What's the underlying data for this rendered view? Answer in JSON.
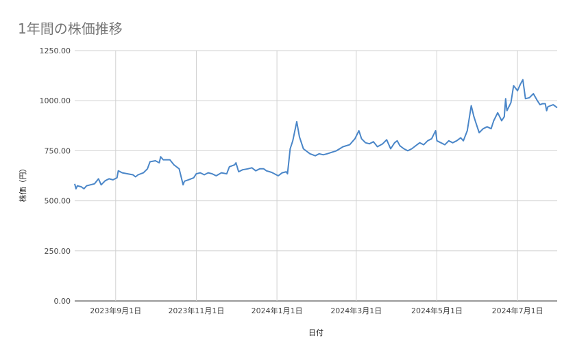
{
  "chart_data": {
    "type": "line",
    "title": "1年間の株価推移",
    "xlabel": "日付",
    "ylabel": "株価（円）",
    "ylim": [
      0,
      1250
    ],
    "xlim": [
      "2023-08-01",
      "2024-07-31"
    ],
    "grid": true,
    "legend": "none",
    "color": "#4a86c8",
    "y_ticks": [
      {
        "value": 0,
        "label": "0.00"
      },
      {
        "value": 250,
        "label": "250.00"
      },
      {
        "value": 500,
        "label": "500.00"
      },
      {
        "value": 750,
        "label": "750.00"
      },
      {
        "value": 1000,
        "label": "1000.00"
      },
      {
        "value": 1250,
        "label": "1250.00"
      }
    ],
    "x_ticks": [
      {
        "date": "2023-09-01",
        "label": "2023年9月1日"
      },
      {
        "date": "2023-11-01",
        "label": "2023年11月1日"
      },
      {
        "date": "2024-01-01",
        "label": "2024年1月1日"
      },
      {
        "date": "2024-03-01",
        "label": "2024年3月1日"
      },
      {
        "date": "2024-05-01",
        "label": "2024年5月1日"
      },
      {
        "date": "2024-07-01",
        "label": "2024年7月1日"
      }
    ],
    "series": [
      {
        "points": [
          [
            "2023-08-01",
            585
          ],
          [
            "2023-08-02",
            560
          ],
          [
            "2023-08-03",
            575
          ],
          [
            "2023-08-06",
            570
          ],
          [
            "2023-08-08",
            560
          ],
          [
            "2023-08-10",
            575
          ],
          [
            "2023-08-13",
            580
          ],
          [
            "2023-08-16",
            585
          ],
          [
            "2023-08-19",
            610
          ],
          [
            "2023-08-21",
            580
          ],
          [
            "2023-08-24",
            600
          ],
          [
            "2023-08-27",
            610
          ],
          [
            "2023-08-30",
            605
          ],
          [
            "2023-09-02",
            615
          ],
          [
            "2023-09-03",
            650
          ],
          [
            "2023-09-06",
            640
          ],
          [
            "2023-09-10",
            635
          ],
          [
            "2023-09-14",
            630
          ],
          [
            "2023-09-16",
            620
          ],
          [
            "2023-09-18",
            630
          ],
          [
            "2023-09-22",
            640
          ],
          [
            "2023-09-25",
            660
          ],
          [
            "2023-09-27",
            695
          ],
          [
            "2023-10-01",
            700
          ],
          [
            "2023-10-04",
            690
          ],
          [
            "2023-10-05",
            720
          ],
          [
            "2023-10-07",
            705
          ],
          [
            "2023-10-12",
            705
          ],
          [
            "2023-10-15",
            680
          ],
          [
            "2023-10-19",
            660
          ],
          [
            "2023-10-22",
            580
          ],
          [
            "2023-10-23",
            598
          ],
          [
            "2023-10-26",
            605
          ],
          [
            "2023-10-30",
            615
          ],
          [
            "2023-11-01",
            635
          ],
          [
            "2023-11-04",
            640
          ],
          [
            "2023-11-07",
            630
          ],
          [
            "2023-11-10",
            640
          ],
          [
            "2023-11-13",
            635
          ],
          [
            "2023-11-16",
            625
          ],
          [
            "2023-11-20",
            640
          ],
          [
            "2023-11-24",
            635
          ],
          [
            "2023-11-26",
            670
          ],
          [
            "2023-11-30",
            680
          ],
          [
            "2023-12-01",
            690
          ],
          [
            "2023-12-03",
            645
          ],
          [
            "2023-12-06",
            655
          ],
          [
            "2023-12-10",
            660
          ],
          [
            "2023-12-13",
            665
          ],
          [
            "2023-12-16",
            650
          ],
          [
            "2023-12-19",
            660
          ],
          [
            "2023-12-22",
            660
          ],
          [
            "2023-12-24",
            650
          ],
          [
            "2023-12-28",
            642
          ],
          [
            "2024-01-02",
            625
          ],
          [
            "2024-01-05",
            640
          ],
          [
            "2024-01-08",
            645
          ],
          [
            "2024-01-09",
            635
          ],
          [
            "2024-01-11",
            760
          ],
          [
            "2024-01-13",
            800
          ],
          [
            "2024-01-16",
            895
          ],
          [
            "2024-01-18",
            820
          ],
          [
            "2024-01-21",
            760
          ],
          [
            "2024-01-26",
            735
          ],
          [
            "2024-01-30",
            725
          ],
          [
            "2024-02-02",
            735
          ],
          [
            "2024-02-05",
            730
          ],
          [
            "2024-02-08",
            735
          ],
          [
            "2024-02-15",
            750
          ],
          [
            "2024-02-20",
            770
          ],
          [
            "2024-02-25",
            780
          ],
          [
            "2024-02-29",
            810
          ],
          [
            "2024-03-03",
            850
          ],
          [
            "2024-03-05",
            810
          ],
          [
            "2024-03-08",
            790
          ],
          [
            "2024-03-11",
            785
          ],
          [
            "2024-03-14",
            795
          ],
          [
            "2024-03-17",
            770
          ],
          [
            "2024-03-21",
            785
          ],
          [
            "2024-03-24",
            805
          ],
          [
            "2024-03-27",
            760
          ],
          [
            "2024-03-30",
            790
          ],
          [
            "2024-04-01",
            800
          ],
          [
            "2024-04-03",
            775
          ],
          [
            "2024-04-06",
            760
          ],
          [
            "2024-04-09",
            750
          ],
          [
            "2024-04-12",
            760
          ],
          [
            "2024-04-15",
            775
          ],
          [
            "2024-04-18",
            790
          ],
          [
            "2024-04-21",
            780
          ],
          [
            "2024-04-24",
            800
          ],
          [
            "2024-04-27",
            810
          ],
          [
            "2024-04-30",
            850
          ],
          [
            "2024-05-01",
            800
          ],
          [
            "2024-05-04",
            790
          ],
          [
            "2024-05-07",
            780
          ],
          [
            "2024-05-10",
            800
          ],
          [
            "2024-05-13",
            790
          ],
          [
            "2024-05-16",
            800
          ],
          [
            "2024-05-19",
            815
          ],
          [
            "2024-05-21",
            800
          ],
          [
            "2024-05-24",
            850
          ],
          [
            "2024-05-27",
            975
          ],
          [
            "2024-05-29",
            920
          ],
          [
            "2024-05-31",
            880
          ],
          [
            "2024-06-02",
            840
          ],
          [
            "2024-06-05",
            860
          ],
          [
            "2024-06-08",
            870
          ],
          [
            "2024-06-11",
            860
          ],
          [
            "2024-06-13",
            900
          ],
          [
            "2024-06-16",
            940
          ],
          [
            "2024-06-19",
            900
          ],
          [
            "2024-06-21",
            920
          ],
          [
            "2024-06-22",
            1010
          ],
          [
            "2024-06-23",
            950
          ],
          [
            "2024-06-26",
            990
          ],
          [
            "2024-06-28",
            1075
          ],
          [
            "2024-07-01",
            1050
          ],
          [
            "2024-07-03",
            1080
          ],
          [
            "2024-07-05",
            1105
          ],
          [
            "2024-07-07",
            1010
          ],
          [
            "2024-07-10",
            1015
          ],
          [
            "2024-07-13",
            1035
          ],
          [
            "2024-07-16",
            1000
          ],
          [
            "2024-07-18",
            980
          ],
          [
            "2024-07-20",
            985
          ],
          [
            "2024-07-22",
            985
          ],
          [
            "2024-07-23",
            950
          ],
          [
            "2024-07-24",
            970
          ],
          [
            "2024-07-26",
            975
          ],
          [
            "2024-07-28",
            980
          ],
          [
            "2024-07-31",
            965
          ]
        ]
      }
    ]
  }
}
